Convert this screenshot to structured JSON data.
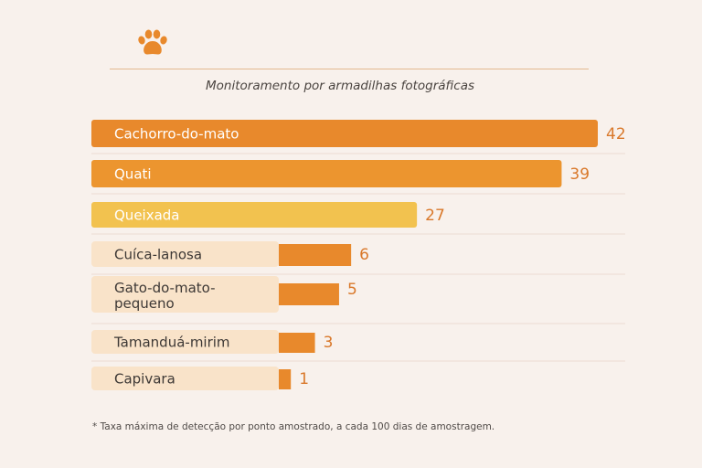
{
  "subtitle": "Monitoramento por armadilhas fotográficas",
  "footnote": "* Taxa máxima de detecção por ponto amostrado, a cada 100 dias de amostragem.",
  "icon": "paw-icon",
  "colors": {
    "background": "#f8f1ec",
    "bar_strong": "#e8892c",
    "bar_medium": "#ec952f",
    "bar_light": "#f2c24f",
    "bar_pale": "#f9e3c9",
    "value_text": "#d9782a",
    "label_dark": "#3d3835",
    "label_light": "#ffffff",
    "gridline": "#ecdcd2"
  },
  "chart_data": {
    "type": "bar",
    "orientation": "horizontal",
    "title": "",
    "subtitle": "Monitoramento por armadilhas fotográficas",
    "xlabel": "",
    "ylabel": "",
    "categories": [
      "Cachorro-do-mato",
      "Quati",
      "Queixada",
      "Cuíca-lanosa",
      "Gato-do-mato-pequeno",
      "Tamanduá-mirim",
      "Capivara"
    ],
    "values": [
      42,
      39,
      27,
      6,
      5,
      3,
      1
    ],
    "xlim": [
      0,
      42
    ],
    "grid": false,
    "legend": "none"
  }
}
